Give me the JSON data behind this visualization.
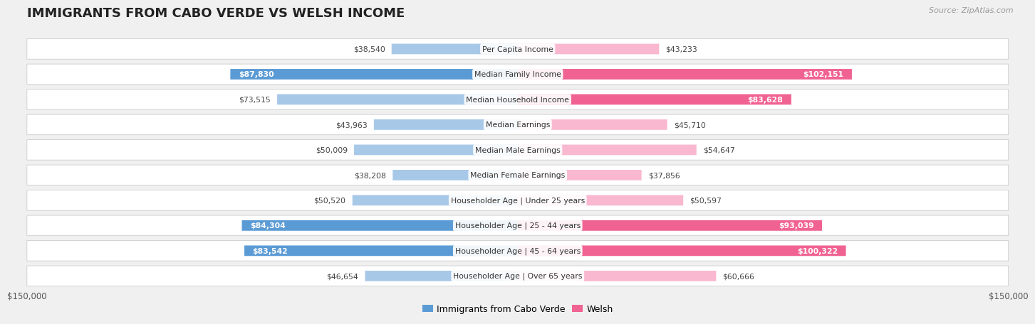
{
  "title": "IMMIGRANTS FROM CABO VERDE VS WELSH INCOME",
  "source": "Source: ZipAtlas.com",
  "categories": [
    "Per Capita Income",
    "Median Family Income",
    "Median Household Income",
    "Median Earnings",
    "Median Male Earnings",
    "Median Female Earnings",
    "Householder Age | Under 25 years",
    "Householder Age | 25 - 44 years",
    "Householder Age | 45 - 64 years",
    "Householder Age | Over 65 years"
  ],
  "cabo_verde": [
    38540,
    87830,
    73515,
    43963,
    50009,
    38208,
    50520,
    84304,
    83542,
    46654
  ],
  "welsh": [
    43233,
    102151,
    83628,
    45710,
    54647,
    37856,
    50597,
    93039,
    100322,
    60666
  ],
  "max_val": 150000,
  "cabo_verde_color_normal": "#a8c8e8",
  "cabo_verde_color_high": "#5b9bd5",
  "welsh_color_normal": "#f9b8d0",
  "welsh_color_high": "#f06292",
  "background_color": "#f0f0f0",
  "row_background": "#ffffff",
  "row_border": "#cccccc",
  "legend_cabo_verde": "Immigrants from Cabo Verde",
  "legend_welsh": "Welsh",
  "x_tick_label": "$150,000",
  "high_threshold": 75000,
  "cat_label_fontsize": 7.8,
  "val_label_fontsize": 7.8,
  "title_fontsize": 13,
  "source_fontsize": 8
}
